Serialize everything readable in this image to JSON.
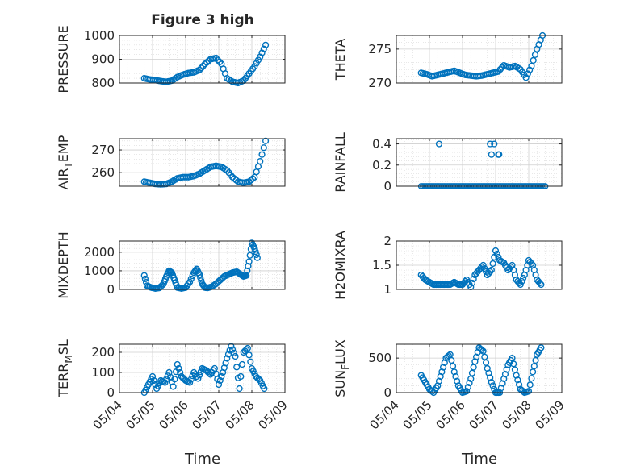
{
  "figure": {
    "title": "Figure 3 high",
    "xlabel": "Time",
    "xticks": [
      "05/04",
      "05/05",
      "05/06",
      "05/07",
      "05/08",
      "05/09"
    ],
    "marker_color": "#0072BD"
  },
  "chart_data": [
    {
      "type": "scatter",
      "ylabel": "PRESSURE",
      "ylim": [
        800,
        1000
      ],
      "yticks": [
        800,
        900,
        1000
      ],
      "xrange": [
        "05/04",
        "05/09"
      ],
      "grid": true,
      "minor_grid": true,
      "x": [
        "05/04 18:00",
        "05/04 22:00",
        "05/05 02:00",
        "05/05 06:00",
        "05/05 10:00",
        "05/05 14:00",
        "05/05 18:00",
        "05/05 22:00",
        "05/06 02:00",
        "05/06 06:00",
        "05/06 10:00",
        "05/06 14:00",
        "05/06 18:00",
        "05/06 22:00",
        "05/07 02:00",
        "05/07 06:00",
        "05/07 10:00",
        "05/07 14:00",
        "05/07 18:00",
        "05/07 22:00",
        "05/08 02:00",
        "05/08 06:00",
        "05/08 10:00"
      ],
      "y": [
        820,
        815,
        812,
        808,
        805,
        810,
        825,
        835,
        842,
        845,
        855,
        880,
        900,
        905,
        880,
        820,
        805,
        800,
        810,
        840,
        870,
        910,
        960
      ]
    },
    {
      "type": "scatter",
      "ylabel": "THETA",
      "ylim": [
        270,
        277
      ],
      "yticks": [
        270,
        275
      ],
      "xrange": [
        "05/04",
        "05/09"
      ],
      "grid": true,
      "minor_grid": true,
      "x": [
        "05/04 18:00",
        "05/04 22:00",
        "05/05 02:00",
        "05/05 06:00",
        "05/05 10:00",
        "05/05 14:00",
        "05/05 18:00",
        "05/05 22:00",
        "05/06 02:00",
        "05/06 06:00",
        "05/06 10:00",
        "05/06 14:00",
        "05/06 18:00",
        "05/06 22:00",
        "05/07 02:00",
        "05/07 06:00",
        "05/07 10:00",
        "05/07 14:00",
        "05/07 18:00",
        "05/07 22:00",
        "05/08 02:00",
        "05/08 06:00",
        "05/08 10:00"
      ],
      "y": [
        271.5,
        271.3,
        271.0,
        271.2,
        271.4,
        271.6,
        271.8,
        271.5,
        271.2,
        271.1,
        271.0,
        271.1,
        271.3,
        271.5,
        271.7,
        272.6,
        272.3,
        272.5,
        272.0,
        270.8,
        272.5,
        275.0,
        277.0
      ]
    },
    {
      "type": "scatter",
      "ylabel": "AIR_TEMP",
      "ylim": [
        254,
        275
      ],
      "yticks": [
        260,
        270
      ],
      "xrange": [
        "05/04",
        "05/09"
      ],
      "grid": true,
      "minor_grid": true,
      "x": [
        "05/04 18:00",
        "05/04 22:00",
        "05/05 02:00",
        "05/05 06:00",
        "05/05 10:00",
        "05/05 14:00",
        "05/05 18:00",
        "05/05 22:00",
        "05/06 02:00",
        "05/06 06:00",
        "05/06 10:00",
        "05/06 14:00",
        "05/06 18:00",
        "05/06 22:00",
        "05/07 02:00",
        "05/07 06:00",
        "05/07 10:00",
        "05/07 14:00",
        "05/07 18:00",
        "05/07 22:00",
        "05/08 02:00",
        "05/08 06:00",
        "05/08 10:00"
      ],
      "y": [
        256,
        255.5,
        255,
        254.8,
        255,
        256,
        257.5,
        258,
        258,
        258.5,
        259.5,
        261,
        262.5,
        263,
        262.5,
        261,
        258,
        256,
        255.5,
        256,
        258,
        265,
        274
      ]
    },
    {
      "type": "scatter",
      "ylabel": "RAINFALL",
      "ylim": [
        0,
        0.45
      ],
      "yticks": [
        0,
        0.2,
        0.4
      ],
      "xrange": [
        "05/04",
        "05/09"
      ],
      "grid": true,
      "minor_grid": true,
      "x": [
        "05/05 07:00",
        "05/06 20:00",
        "05/06 21:00",
        "05/06 23:00",
        "05/07 02:00",
        "05/07 02:30"
      ],
      "y": [
        0.4,
        0.4,
        0.3,
        0.4,
        0.3,
        0.3
      ],
      "baseline_value": 0,
      "baseline_range": [
        "05/04 18:00",
        "05/08 12:00"
      ]
    },
    {
      "type": "scatter",
      "ylabel": "MIXDEPTH",
      "ylim": [
        0,
        2600
      ],
      "yticks": [
        0,
        1000,
        2000
      ],
      "xrange": [
        "05/04",
        "05/09"
      ],
      "grid": true,
      "minor_grid": true,
      "x": [
        "05/04 18:00",
        "05/04 20:00",
        "05/04 23:00",
        "05/05 02:00",
        "05/05 05:00",
        "05/05 08:00",
        "05/05 10:00",
        "05/05 12:00",
        "05/05 14:00",
        "05/05 16:00",
        "05/05 18:00",
        "05/05 21:00",
        "05/06 00:00",
        "05/06 03:00",
        "05/06 06:00",
        "05/06 08:00",
        "05/06 10:00",
        "05/06 12:00",
        "05/06 14:00",
        "05/06 16:00",
        "05/06 19:00",
        "05/06 22:00",
        "05/07 01:00",
        "05/07 04:00",
        "05/07 07:00",
        "05/07 10:00",
        "05/07 13:00",
        "05/07 16:00",
        "05/07 18:00",
        "05/07 20:00",
        "05/07 22:00",
        "05/08 00:00",
        "05/08 02:00",
        "05/08 04:00"
      ],
      "y": [
        750,
        200,
        100,
        50,
        80,
        300,
        700,
        1000,
        900,
        500,
        100,
        50,
        100,
        400,
        900,
        1100,
        800,
        300,
        100,
        80,
        150,
        300,
        500,
        700,
        800,
        900,
        950,
        800,
        700,
        750,
        1500,
        2500,
        2200,
        1700
      ]
    },
    {
      "type": "scatter",
      "ylabel": "H2OMIXRA",
      "ylim": [
        1,
        2
      ],
      "yticks": [
        1,
        1.5,
        2
      ],
      "xrange": [
        "05/04",
        "05/09"
      ],
      "grid": true,
      "minor_grid": true,
      "x": [
        "05/04 18:00",
        "05/04 21:00",
        "05/05 00:00",
        "05/05 03:00",
        "05/05 06:00",
        "05/05 09:00",
        "05/05 12:00",
        "05/05 15:00",
        "05/05 18:00",
        "05/05 21:00",
        "05/06 00:00",
        "05/06 03:00",
        "05/06 06:00",
        "05/06 09:00",
        "05/06 12:00",
        "05/06 15:00",
        "05/06 18:00",
        "05/06 21:00",
        "05/07 00:00",
        "05/07 03:00",
        "05/07 06:00",
        "05/07 09:00",
        "05/07 12:00",
        "05/07 15:00",
        "05/07 18:00",
        "05/07 21:00",
        "05/08 00:00",
        "05/08 03:00",
        "05/08 06:00",
        "05/08 09:00"
      ],
      "y": [
        1.3,
        1.2,
        1.15,
        1.1,
        1.1,
        1.1,
        1.1,
        1.1,
        1.15,
        1.1,
        1.1,
        1.2,
        1.05,
        1.3,
        1.4,
        1.5,
        1.3,
        1.4,
        1.8,
        1.6,
        1.55,
        1.4,
        1.5,
        1.2,
        1.1,
        1.3,
        1.6,
        1.5,
        1.2,
        1.1
      ]
    },
    {
      "type": "scatter",
      "ylabel": "TERR_MSL",
      "ylim": [
        0,
        240
      ],
      "yticks": [
        0,
        100,
        200
      ],
      "xrange": [
        "05/04",
        "05/09"
      ],
      "grid": true,
      "minor_grid": true,
      "x": [
        "05/04 18:00",
        "05/04 21:00",
        "05/05 00:00",
        "05/05 03:00",
        "05/05 06:00",
        "05/05 09:00",
        "05/05 12:00",
        "05/05 15:00",
        "05/05 18:00",
        "05/05 21:00",
        "05/06 00:00",
        "05/06 03:00",
        "05/06 06:00",
        "05/06 09:00",
        "05/06 12:00",
        "05/06 15:00",
        "05/06 18:00",
        "05/06 21:00",
        "05/07 00:00",
        "05/07 03:00",
        "05/07 06:00",
        "05/07 09:00",
        "05/07 12:00",
        "05/07 15:00",
        "05/07 18:00",
        "05/07 21:00",
        "05/08 00:00",
        "05/08 03:00",
        "05/08 06:00",
        "05/08 09:00"
      ],
      "y": [
        0,
        40,
        80,
        20,
        60,
        50,
        100,
        30,
        140,
        80,
        60,
        50,
        100,
        70,
        120,
        110,
        90,
        120,
        40,
        100,
        170,
        230,
        180,
        20,
        200,
        220,
        120,
        80,
        60,
        20
      ]
    },
    {
      "type": "scatter",
      "ylabel": "SUN_FLUX",
      "ylim": [
        0,
        700
      ],
      "yticks": [
        0,
        500
      ],
      "xrange": [
        "05/04",
        "05/09"
      ],
      "grid": true,
      "minor_grid": true,
      "x": [
        "05/04 18:00",
        "05/04 21:00",
        "05/05 00:00",
        "05/05 03:00",
        "05/05 06:00",
        "05/05 09:00",
        "05/05 12:00",
        "05/05 15:00",
        "05/05 18:00",
        "05/05 21:00",
        "05/06 00:00",
        "05/06 03:00",
        "05/06 06:00",
        "05/06 09:00",
        "05/06 12:00",
        "05/06 15:00",
        "05/06 18:00",
        "05/06 21:00",
        "05/07 00:00",
        "05/07 03:00",
        "05/07 06:00",
        "05/07 09:00",
        "05/07 12:00",
        "05/07 15:00",
        "05/07 18:00",
        "05/07 21:00",
        "05/08 00:00",
        "05/08 03:00",
        "05/08 06:00",
        "05/08 09:00"
      ],
      "y": [
        250,
        150,
        50,
        0,
        100,
        300,
        500,
        550,
        300,
        100,
        0,
        20,
        200,
        450,
        650,
        600,
        350,
        150,
        0,
        0,
        200,
        400,
        500,
        250,
        50,
        0,
        20,
        300,
        550,
        650
      ]
    }
  ]
}
